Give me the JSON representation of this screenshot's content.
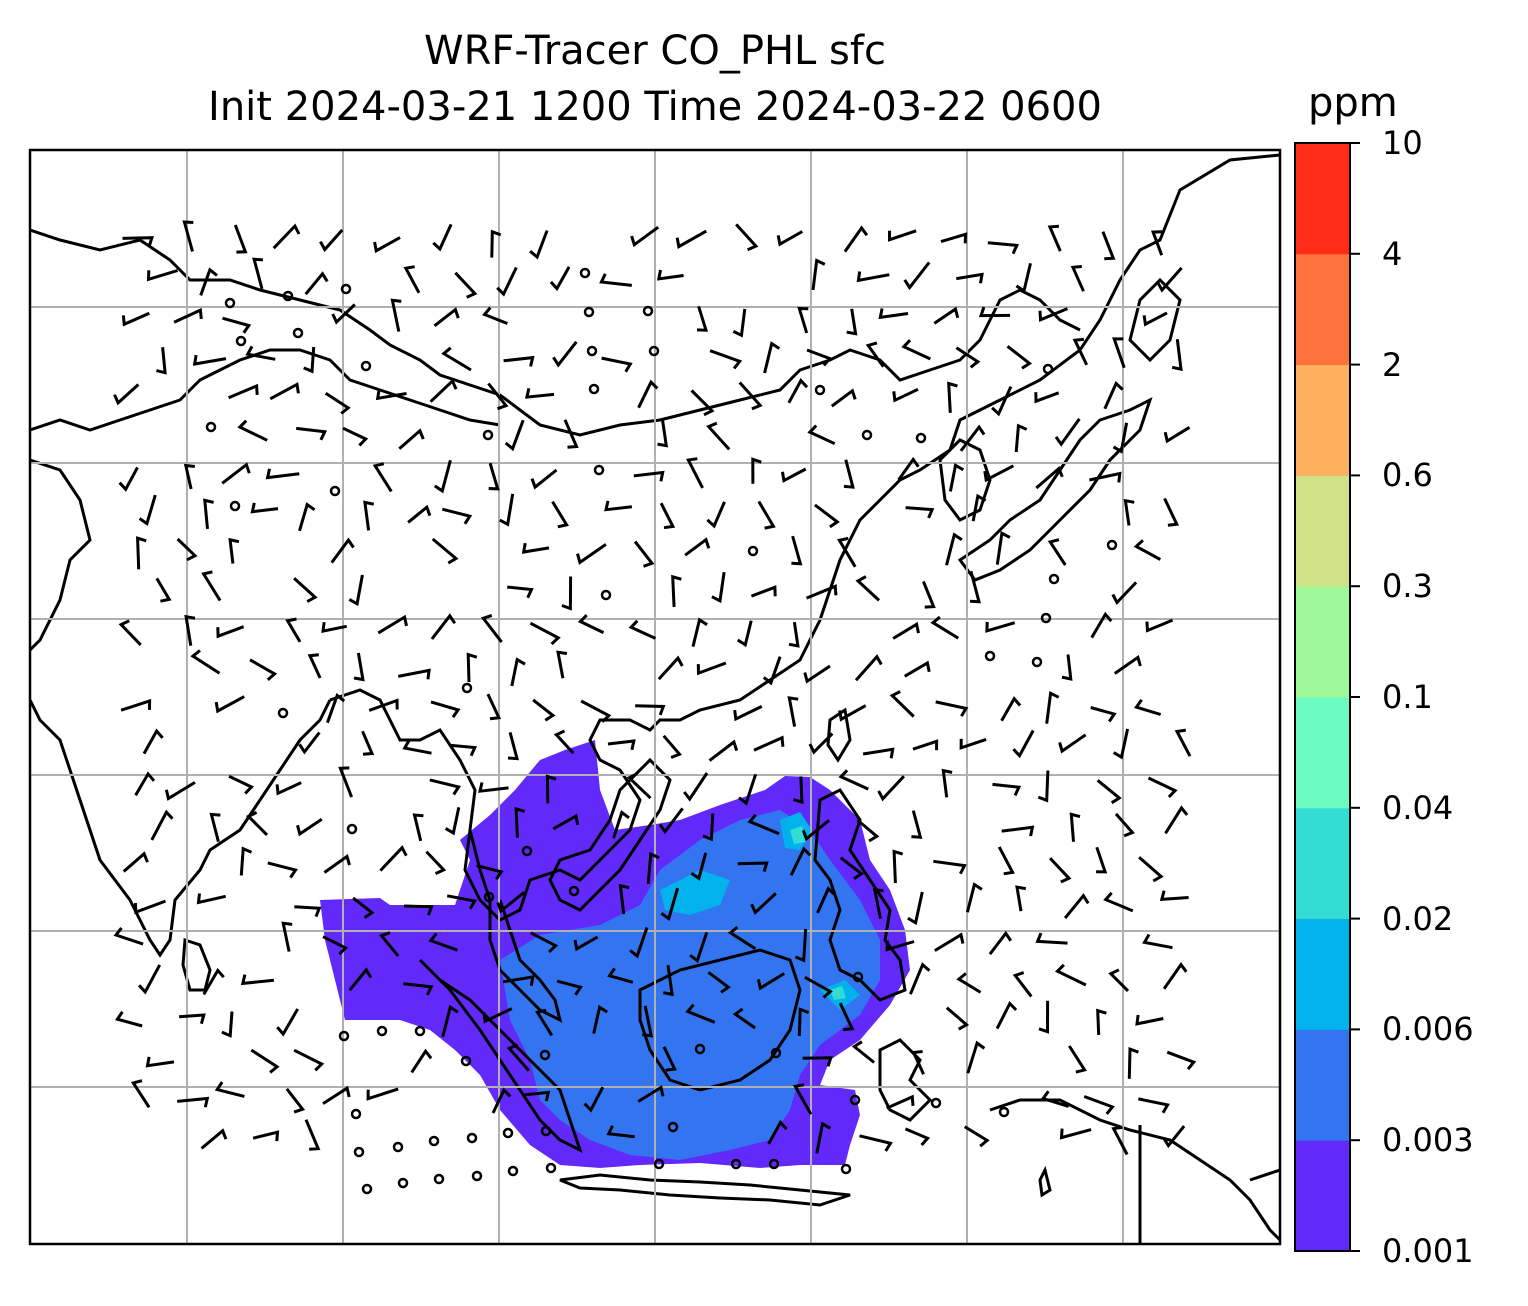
{
  "title": {
    "line1": "WRF-Tracer CO_PHL sfc",
    "line2": "Init 2024-03-21 1200 Time 2024-03-22 0600"
  },
  "colorbar": {
    "unit_label": "ppm",
    "levels": [
      "0.001",
      "0.003",
      "0.006",
      "0.02",
      "0.04",
      "0.1",
      "0.3",
      "0.6",
      "2",
      "4",
      "10"
    ],
    "colors": [
      "#6229fb",
      "#3374f0",
      "#02b2ec",
      "#33ddd6",
      "#6cfbc0",
      "#9ff99a",
      "#cfe287",
      "#fdb15f",
      "#ff723c",
      "#ff2c18"
    ]
  },
  "map": {
    "region": "South and Southeast Asia",
    "gridlines": true,
    "coastlines": true,
    "wind_barbs": true,
    "tracer_color_low": "#6229fb",
    "tracer_color_mid": "#3374f0"
  }
}
